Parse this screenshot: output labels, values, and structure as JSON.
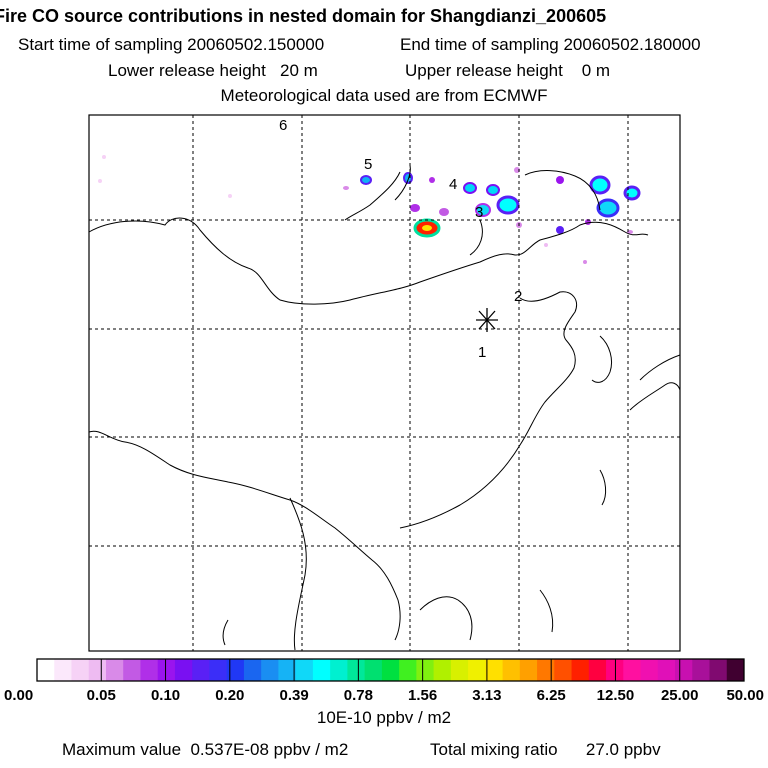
{
  "header": {
    "title": "Fire CO source contributions in nested domain for Shangdianzi_200605",
    "start_time": "Start time of sampling 20060502.150000",
    "end_time": "End time of sampling 20060502.180000",
    "lower_height": "Lower release height   20 m",
    "upper_height": "Upper release height    0 m",
    "met_data": "Meteorological data used are from ECMWF"
  },
  "map": {
    "point_labels": [
      "1",
      "2",
      "3",
      "4",
      "5",
      "6"
    ]
  },
  "colorbar": {
    "labels": [
      "0.00",
      "0.05",
      "0.10",
      "0.20",
      "0.39",
      "0.78",
      "1.56",
      "3.13",
      "6.25",
      "12.50",
      "25.00",
      "50.00"
    ],
    "colors": [
      "#ffffff",
      "#fbe8fb",
      "#f6d2f6",
      "#eebbf2",
      "#d98ae8",
      "#c25ae4",
      "#b02fe8",
      "#9a14ee",
      "#7a10f2",
      "#5a20f5",
      "#3b2ef8",
      "#2038f5",
      "#1a66f0",
      "#1a8ef2",
      "#16b3f5",
      "#10d8f8",
      "#00ffff",
      "#00f0d0",
      "#00e89a",
      "#00e070",
      "#00e040",
      "#40f020",
      "#80f010",
      "#b0f000",
      "#d8f000",
      "#f0f000",
      "#ffe000",
      "#ffc000",
      "#ffa000",
      "#ff7800",
      "#ff5000",
      "#ff2000",
      "#ff0040",
      "#ff0080",
      "#ff10a0",
      "#f010b0",
      "#e010b8",
      "#c810b0",
      "#a8109a",
      "#800a70",
      "#400030"
    ],
    "unit": "10E-10 ppbv / m2"
  },
  "footer": {
    "max_value": "Maximum value  0.537E-08 ppbv / m2",
    "total_mixing": "Total mixing ratio      27.0 ppbv"
  }
}
